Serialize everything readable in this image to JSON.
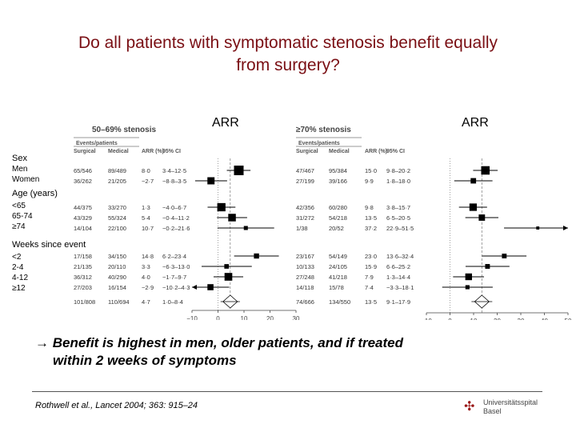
{
  "slide": {
    "title_line1": "Do all patients with symptomatic stenosis benefit equally",
    "title_line2": "from surgery?",
    "arr_left": "ARR",
    "arr_right": "ARR",
    "conclusion_line1": "→ Benefit is highest in men, older patients, and if treated",
    "conclusion_line2": "within 2 weeks of symptoms",
    "reference": "Rothwell et al., Lancet 2004; 363: 915–24",
    "logo_line1": "Universitätsspital",
    "logo_line2": "Basel"
  },
  "groups": [
    {
      "name": "Sex",
      "items": [
        "Men",
        "Women"
      ]
    },
    {
      "name": "Age (years)",
      "items": [
        "<65",
        "65-74",
        "≥74"
      ]
    },
    {
      "name": "Weeks since event",
      "items": [
        "<2",
        "2-4",
        "4-12",
        "≥12"
      ]
    }
  ],
  "chart_data": [
    {
      "type": "forest",
      "title": "50–69% stenosis",
      "col_header_events": "Events/patients",
      "col_headers": [
        "Surgical",
        "Medical",
        "ARR (%)",
        "95% CI"
      ],
      "xlim": [
        -10,
        30
      ],
      "xticks": [
        -10,
        0,
        10,
        20,
        30
      ],
      "rows": [
        {
          "surgical": "65/546",
          "medical": "89/489",
          "arr_text": "8·0",
          "ci_text": "3·4–12·5",
          "arr": 8.0,
          "lo": 3.4,
          "hi": 12.5
        },
        {
          "surgical": "36/262",
          "medical": "21/205",
          "arr_text": "−2·7",
          "ci_text": "−8·8–3·5",
          "arr": -2.7,
          "lo": -8.8,
          "hi": 3.5
        },
        {
          "surgical": "44/375",
          "medical": "33/270",
          "arr_text": "1·3",
          "ci_text": "−4·0–6·7",
          "arr": 1.3,
          "lo": -4.0,
          "hi": 6.7
        },
        {
          "surgical": "43/329",
          "medical": "55/324",
          "arr_text": "5·4",
          "ci_text": "−0·4–11·2",
          "arr": 5.4,
          "lo": -0.4,
          "hi": 11.2
        },
        {
          "surgical": "14/104",
          "medical": "22/100",
          "arr_text": "10·7",
          "ci_text": "−0·2–21·6",
          "arr": 10.7,
          "lo": -0.2,
          "hi": 21.6
        },
        {
          "surgical": "17/158",
          "medical": "34/150",
          "arr_text": "14·8",
          "ci_text": "6·2–23·4",
          "arr": 14.8,
          "lo": 6.2,
          "hi": 23.4
        },
        {
          "surgical": "21/135",
          "medical": "20/110",
          "arr_text": "3·3",
          "ci_text": "−6·3–13·0",
          "arr": 3.3,
          "lo": -6.3,
          "hi": 13.0
        },
        {
          "surgical": "36/312",
          "medical": "40/290",
          "arr_text": "4·0",
          "ci_text": "−1·7–9·7",
          "arr": 4.0,
          "lo": -1.7,
          "hi": 9.7
        },
        {
          "surgical": "27/203",
          "medical": "16/154",
          "arr_text": "−2·9",
          "ci_text": "−10·2–4·3",
          "arr": -2.9,
          "lo": -10.2,
          "hi": 4.3
        }
      ],
      "overall": {
        "surgical": "101/808",
        "medical": "110/694",
        "arr_text": "4·7",
        "ci_text": "1·0–8·4",
        "arr": 4.7,
        "lo": 1.0,
        "hi": 8.4
      }
    },
    {
      "type": "forest",
      "title": "≥70% stenosis",
      "col_header_events": "Events/patients",
      "col_headers": [
        "Surgical",
        "Medical",
        "ARR (%)",
        "95% CI"
      ],
      "xlim": [
        -10,
        50
      ],
      "xticks": [
        -10,
        0,
        10,
        20,
        30,
        40,
        50
      ],
      "rows": [
        {
          "surgical": "47/467",
          "medical": "95/384",
          "arr_text": "15·0",
          "ci_text": "9·8–20·2",
          "arr": 15.0,
          "lo": 9.8,
          "hi": 20.2
        },
        {
          "surgical": "27/199",
          "medical": "39/166",
          "arr_text": "9·9",
          "ci_text": "1·8–18·0",
          "arr": 9.9,
          "lo": 1.8,
          "hi": 18.0
        },
        {
          "surgical": "42/356",
          "medical": "60/280",
          "arr_text": "9·8",
          "ci_text": "3·8–15·7",
          "arr": 9.8,
          "lo": 3.8,
          "hi": 15.7
        },
        {
          "surgical": "31/272",
          "medical": "54/218",
          "arr_text": "13·5",
          "ci_text": "6·5–20·5",
          "arr": 13.5,
          "lo": 6.5,
          "hi": 20.5
        },
        {
          "surgical": "1/38",
          "medical": "20/52",
          "arr_text": "37·2",
          "ci_text": "22·9–51·5",
          "arr": 37.2,
          "lo": 22.9,
          "hi": 51.5
        },
        {
          "surgical": "23/167",
          "medical": "54/149",
          "arr_text": "23·0",
          "ci_text": "13·6–32·4",
          "arr": 23.0,
          "lo": 13.6,
          "hi": 32.4
        },
        {
          "surgical": "10/133",
          "medical": "24/105",
          "arr_text": "15·9",
          "ci_text": "6·6–25·2",
          "arr": 15.9,
          "lo": 6.6,
          "hi": 25.2
        },
        {
          "surgical": "27/248",
          "medical": "41/218",
          "arr_text": "7·9",
          "ci_text": "1·3–14·4",
          "arr": 7.9,
          "lo": 1.3,
          "hi": 14.4
        },
        {
          "surgical": "14/118",
          "medical": "15/78",
          "arr_text": "7·4",
          "ci_text": "−3·3–18·1",
          "arr": 7.4,
          "lo": -3.3,
          "hi": 18.1
        }
      ],
      "overall": {
        "surgical": "74/666",
        "medical": "134/550",
        "arr_text": "13·5",
        "ci_text": "9·1–17·9",
        "arr": 13.5,
        "lo": 9.1,
        "hi": 17.9
      }
    }
  ]
}
